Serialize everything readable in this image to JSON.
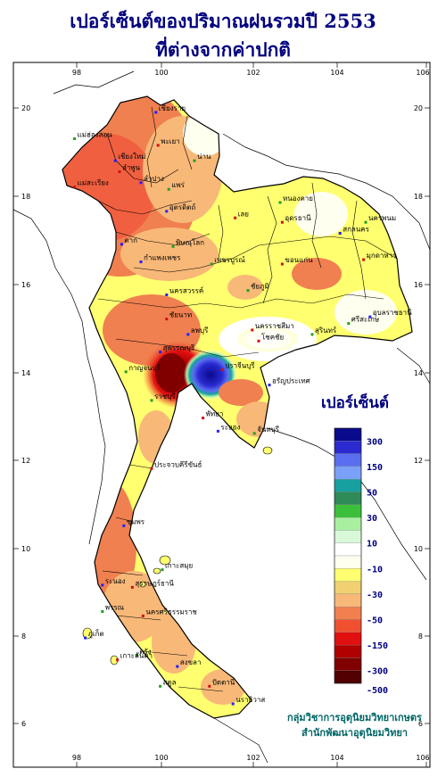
{
  "title": {
    "line1": "เปอร์เซ็นต์ของปริมาณฝนรวมปี 2553",
    "line2": "ที่ต่างจากค่าปกติ"
  },
  "axes": {
    "x_ticks": [
      "98",
      "100",
      "102",
      "104",
      "106"
    ],
    "y_ticks": [
      "20",
      "18",
      "16",
      "14",
      "12",
      "10",
      "8",
      "6"
    ]
  },
  "legend": {
    "title": "เปอร์เซ็นต์",
    "labels": [
      "300",
      "150",
      "50",
      "30",
      "10",
      "-10",
      "-30",
      "-50",
      "-150",
      "-300",
      "-500"
    ],
    "colors": [
      "#0a0a8c",
      "#2a2ad0",
      "#5a6ef0",
      "#7aa0f8",
      "#18a0a0",
      "#2e8b57",
      "#3cc03c",
      "#a8f0a0",
      "#d8f8d8",
      "#ffffff",
      "#fffff0",
      "#ffff70",
      "#f0d070",
      "#f8b878",
      "#f08050",
      "#f05030",
      "#e01010",
      "#b00000",
      "#800000",
      "#500000"
    ]
  },
  "credit": {
    "line1": "กลุ่มวิชาการอุตุนิยมวิทยาเกษตร",
    "line2": "สำนักพัฒนาอุตุนิยมวิทยา"
  },
  "places": [
    {
      "name": "เชียงราย",
      "lon": 99.85,
      "lat": 19.9
    },
    {
      "name": "แม่ฮ่องสอน",
      "lon": 97.95,
      "lat": 19.3
    },
    {
      "name": "พะเยา",
      "lon": 99.9,
      "lat": 19.15
    },
    {
      "name": "เชียงใหม่",
      "lon": 98.9,
      "lat": 18.8
    },
    {
      "name": "น่าน",
      "lon": 100.75,
      "lat": 18.8
    },
    {
      "name": "ลำพูน",
      "lon": 99.0,
      "lat": 18.55
    },
    {
      "name": "ลำปาง",
      "lon": 99.5,
      "lat": 18.3
    },
    {
      "name": "แพร่",
      "lon": 100.15,
      "lat": 18.15
    },
    {
      "name": "แม่สะเรียง",
      "lon": 97.95,
      "lat": 18.2
    },
    {
      "name": "อุตรดิตถ์",
      "lon": 100.1,
      "lat": 17.65
    },
    {
      "name": "หนองคาย",
      "lon": 102.75,
      "lat": 17.85
    },
    {
      "name": "อุดรธานี",
      "lon": 102.8,
      "lat": 17.4
    },
    {
      "name": "สกลนคร",
      "lon": 104.15,
      "lat": 17.15
    },
    {
      "name": "นครพนม",
      "lon": 104.75,
      "lat": 17.4
    },
    {
      "name": "เลย",
      "lon": 101.7,
      "lat": 17.5
    },
    {
      "name": "ตาก",
      "lon": 99.05,
      "lat": 16.9
    },
    {
      "name": "พิษณุโลก",
      "lon": 100.25,
      "lat": 16.85
    },
    {
      "name": "มุกดาหาร",
      "lon": 104.7,
      "lat": 16.55
    },
    {
      "name": "กำแพงเพชร",
      "lon": 99.5,
      "lat": 16.5
    },
    {
      "name": "เพชรบูรณ์",
      "lon": 101.15,
      "lat": 16.45
    },
    {
      "name": "ขอนแก่น",
      "lon": 102.8,
      "lat": 16.45
    },
    {
      "name": "นครสวรรค์",
      "lon": 100.1,
      "lat": 15.75
    },
    {
      "name": "ชัยภูมิ",
      "lon": 102.0,
      "lat": 15.85
    },
    {
      "name": "ชัยนาท",
      "lon": 100.1,
      "lat": 15.2
    },
    {
      "name": "อุบลราชธานี",
      "lon": 104.85,
      "lat": 15.25
    },
    {
      "name": "ศรีสะเกษ",
      "lon": 104.35,
      "lat": 15.1
    },
    {
      "name": "นครราชสีมา",
      "lon": 102.1,
      "lat": 14.95
    },
    {
      "name": "ลพบุรี",
      "lon": 100.6,
      "lat": 14.85
    },
    {
      "name": "สุรินทร์",
      "lon": 103.5,
      "lat": 14.85
    },
    {
      "name": "โชคชัย",
      "lon": 102.25,
      "lat": 14.7
    },
    {
      "name": "สุพรรณบุรี",
      "lon": 99.95,
      "lat": 14.45
    },
    {
      "name": "กาญจนบุรี",
      "lon": 99.15,
      "lat": 14.0
    },
    {
      "name": "ปราจีนบุรี",
      "lon": 101.4,
      "lat": 14.05
    },
    {
      "name": "อรัญประเทศ",
      "lon": 102.5,
      "lat": 13.7
    },
    {
      "name": "ราชบุรี",
      "lon": 99.75,
      "lat": 13.35
    },
    {
      "name": "พัทยา",
      "lon": 100.95,
      "lat": 12.95
    },
    {
      "name": "ระยอง",
      "lon": 101.3,
      "lat": 12.65
    },
    {
      "name": "จันทบุรี",
      "lon": 102.15,
      "lat": 12.6
    },
    {
      "name": "ประจวบคีรีขันธ์",
      "lon": 99.75,
      "lat": 11.8
    },
    {
      "name": "ชุมพร",
      "lon": 99.1,
      "lat": 10.5
    },
    {
      "name": "เกาะสมุย",
      "lon": 100.0,
      "lat": 9.5
    },
    {
      "name": "สุราษฎร์ธานี",
      "lon": 99.3,
      "lat": 9.1
    },
    {
      "name": "ระนอง",
      "lon": 98.6,
      "lat": 9.15
    },
    {
      "name": "พรรณ",
      "lon": 98.6,
      "lat": 8.55
    },
    {
      "name": "นครศรีธรรมราช",
      "lon": 99.55,
      "lat": 8.45
    },
    {
      "name": "ภูเก็ต",
      "lon": 98.2,
      "lat": 7.95
    },
    {
      "name": "ตรัง",
      "lon": 99.4,
      "lat": 7.55
    },
    {
      "name": "เกาะลันตา",
      "lon": 98.95,
      "lat": 7.45
    },
    {
      "name": "สงขลา",
      "lon": 100.35,
      "lat": 7.3
    },
    {
      "name": "สตูล",
      "lon": 99.95,
      "lat": 6.85
    },
    {
      "name": "ปัตตานี",
      "lon": 101.1,
      "lat": 6.85
    },
    {
      "name": "นราธิวาส",
      "lon": 101.65,
      "lat": 6.45
    }
  ],
  "rain_anomaly": [
    {
      "lon": 98.8,
      "lat": 18.6,
      "value": -50
    },
    {
      "lon": 100.0,
      "lat": 16.8,
      "value": -40
    },
    {
      "lon": 99.8,
      "lat": 13.8,
      "value": -300
    },
    {
      "lon": 100.7,
      "lat": 13.9,
      "value": 300
    },
    {
      "lon": 102.2,
      "lat": 14.9,
      "value": 10
    },
    {
      "lon": 103.5,
      "lat": 16.1,
      "value": -40
    },
    {
      "lon": 99.2,
      "lat": 10.4,
      "value": -40
    },
    {
      "lon": 100.0,
      "lat": 8.2,
      "value": -20
    }
  ]
}
